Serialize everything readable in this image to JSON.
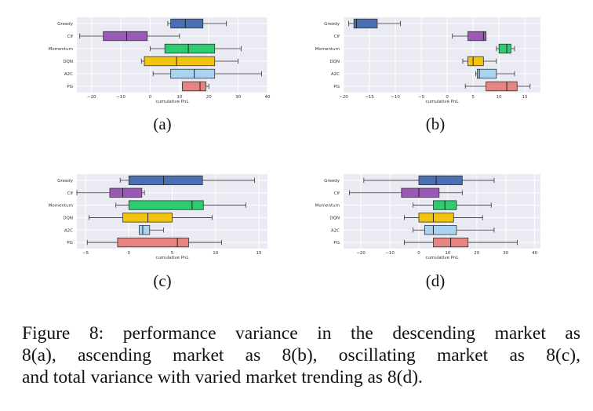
{
  "chart_data": [
    {
      "type": "boxplot",
      "label": "(a)",
      "xlabel": "cumulative PnL",
      "xlim": [
        -25,
        40
      ],
      "xticks": [
        -20,
        -10,
        0,
        10,
        20,
        30,
        40
      ],
      "categories": [
        "Greedy",
        "Clf",
        "Momentum",
        "DQN",
        "A2C",
        "PG"
      ],
      "colors": [
        "#4a6fb3",
        "#9b59b6",
        "#2ecc71",
        "#f1c40f",
        "#a8d4f0",
        "#e58480"
      ],
      "boxes": [
        {
          "whislo": 6,
          "q1": 7,
          "med": 12,
          "q3": 18,
          "whishi": 26
        },
        {
          "whislo": -24,
          "q1": -16,
          "med": -8,
          "q3": -1,
          "whishi": 10
        },
        {
          "whislo": 0,
          "q1": 5,
          "med": 13,
          "q3": 22,
          "whishi": 31
        },
        {
          "whislo": -3,
          "q1": -2,
          "med": 9,
          "q3": 22,
          "whishi": 30
        },
        {
          "whislo": 1,
          "q1": 7,
          "med": 15,
          "q3": 22,
          "whishi": 38
        },
        {
          "whislo": 11,
          "q1": 11,
          "med": 17,
          "q3": 19,
          "whishi": 20
        }
      ]
    },
    {
      "type": "boxplot",
      "label": "(b)",
      "xlabel": "cumulative PnL",
      "xlim": [
        -20,
        18
      ],
      "xticks": [
        -20,
        -15,
        -10,
        -5,
        0,
        5,
        10,
        15
      ],
      "categories": [
        "Greedy",
        "Clf",
        "Momentum",
        "DQN",
        "A2C",
        "PG"
      ],
      "colors": [
        "#4a6fb3",
        "#9b59b6",
        "#2ecc71",
        "#f1c40f",
        "#a8d4f0",
        "#e58480"
      ],
      "boxes": [
        {
          "whislo": -19,
          "q1": -18,
          "med": -17.5,
          "q3": -13.5,
          "whishi": -9
        },
        {
          "whislo": 1,
          "q1": 4,
          "med": 7,
          "q3": 7.5,
          "whishi": 7.5
        },
        {
          "whislo": 9.5,
          "q1": 10,
          "med": 11.5,
          "q3": 12.3,
          "whishi": 13
        },
        {
          "whislo": 3,
          "q1": 4,
          "med": 5,
          "q3": 7,
          "whishi": 9.5
        },
        {
          "whislo": 5.5,
          "q1": 5.8,
          "med": 6.2,
          "q3": 9.5,
          "whishi": 13
        },
        {
          "whislo": 3.5,
          "q1": 7.5,
          "med": 11.5,
          "q3": 13.5,
          "whishi": 16
        }
      ]
    },
    {
      "type": "boxplot",
      "label": "(c)",
      "xlabel": "cumulative PnL",
      "xlim": [
        -6,
        16
      ],
      "xticks": [
        -5,
        0,
        5,
        10,
        15
      ],
      "categories": [
        "Greedy",
        "Clf",
        "Momentum",
        "DQN",
        "A2C",
        "PG"
      ],
      "colors": [
        "#4a6fb3",
        "#9b59b6",
        "#2ecc71",
        "#f1c40f",
        "#a8d4f0",
        "#e58480"
      ],
      "boxes": [
        {
          "whislo": -1,
          "q1": 0,
          "med": 4,
          "q3": 8.5,
          "whishi": 14.5
        },
        {
          "whislo": -6,
          "q1": -2.2,
          "med": -0.7,
          "q3": 1.5,
          "whishi": 1.8
        },
        {
          "whislo": -1.5,
          "q1": 0,
          "med": 7.3,
          "q3": 8.6,
          "whishi": 13.5
        },
        {
          "whislo": -4.6,
          "q1": -0.7,
          "med": 2.2,
          "q3": 5,
          "whishi": 9.6
        },
        {
          "whislo": 1.2,
          "q1": 1.2,
          "med": 1.6,
          "q3": 2.4,
          "whishi": 4
        },
        {
          "whislo": -4.8,
          "q1": -1.3,
          "med": 5.6,
          "q3": 6.9,
          "whishi": 10.7
        }
      ]
    },
    {
      "type": "boxplot",
      "label": "(d)",
      "xlabel": "cumulative PnL",
      "xlim": [
        -26,
        42
      ],
      "xticks": [
        -20,
        -10,
        0,
        10,
        20,
        30,
        40
      ],
      "categories": [
        "Greedy",
        "Clf",
        "Momentum",
        "DQN",
        "A2C",
        "PG"
      ],
      "colors": [
        "#4a6fb3",
        "#9b59b6",
        "#2ecc71",
        "#f1c40f",
        "#a8d4f0",
        "#e58480"
      ],
      "boxes": [
        {
          "whislo": -19,
          "q1": 0,
          "med": 6,
          "q3": 15,
          "whishi": 26
        },
        {
          "whislo": -24,
          "q1": -6,
          "med": 0,
          "q3": 7,
          "whishi": 15
        },
        {
          "whislo": -2,
          "q1": 5,
          "med": 9,
          "q3": 13,
          "whishi": 25
        },
        {
          "whislo": -5,
          "q1": 0,
          "med": 5,
          "q3": 12,
          "whishi": 22
        },
        {
          "whislo": -2,
          "q1": 2,
          "med": 5,
          "q3": 13,
          "whishi": 26
        },
        {
          "whislo": -5,
          "q1": 5,
          "med": 11,
          "q3": 17,
          "whishi": 34
        }
      ]
    }
  ],
  "caption_lines": [
    "Figure 8: performance variance in the descending market as",
    "8(a), ascending market as 8(b), oscillating market as 8(c),",
    "and total variance with varied market trending as 8(d)."
  ]
}
